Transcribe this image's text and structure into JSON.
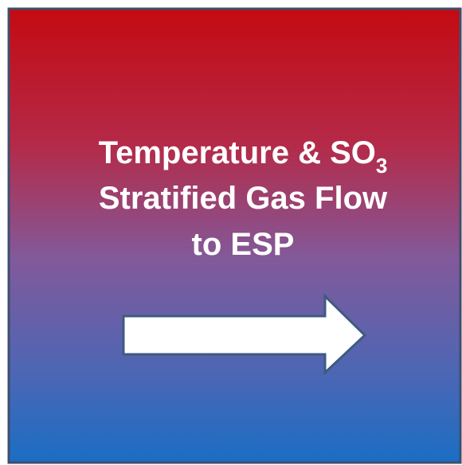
{
  "title": {
    "line1": "Temperature & SO",
    "line1_subscript": "3",
    "line2": "Stratified Gas Flow",
    "line3": "to ESP"
  }
}
